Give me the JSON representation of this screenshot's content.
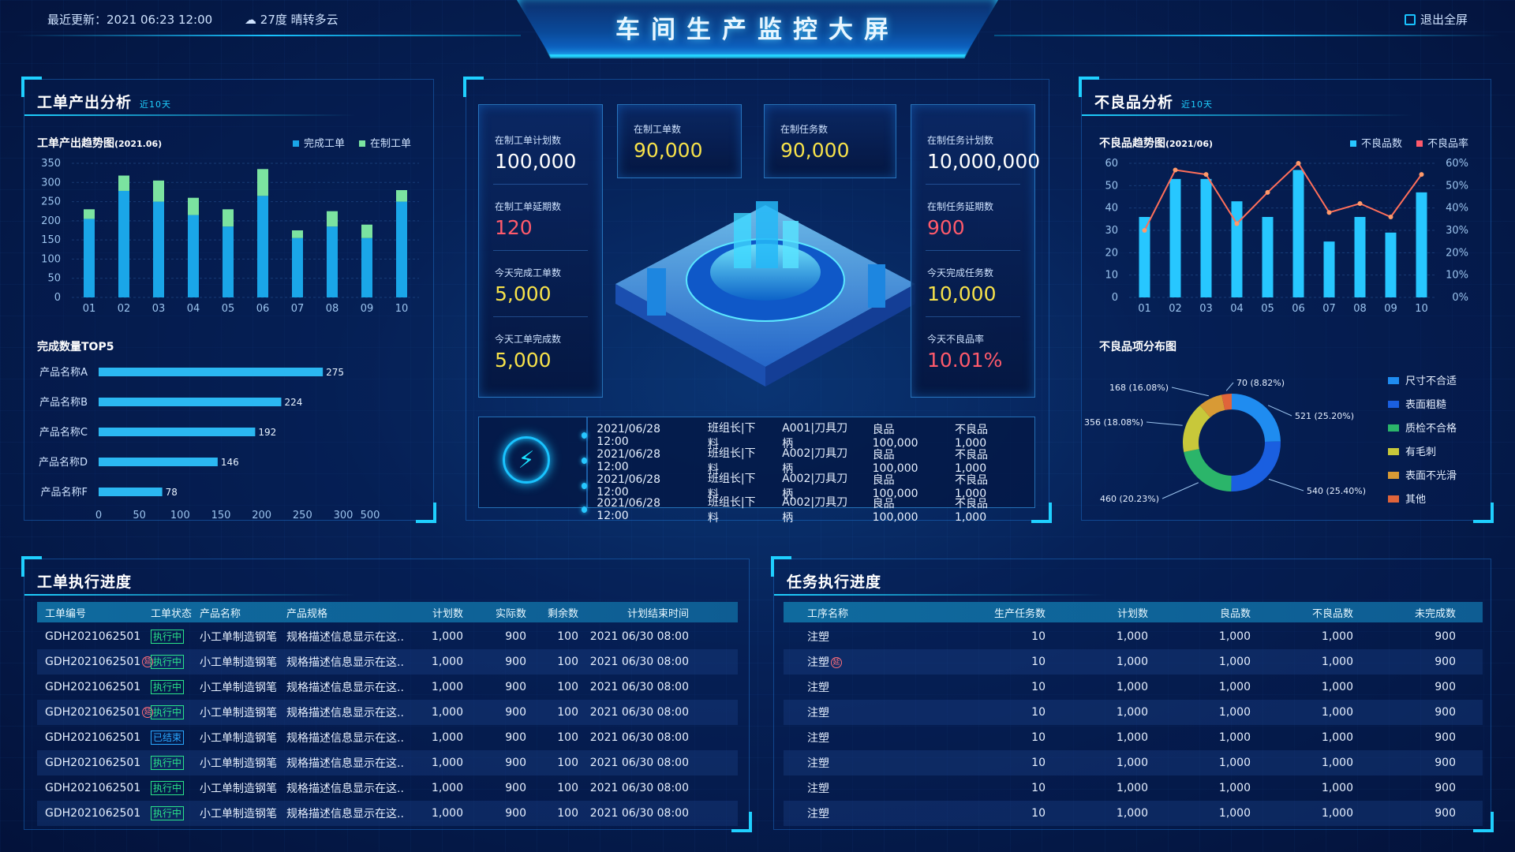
{
  "header": {
    "update_label": "最近更新：",
    "update_time": "2021 06:23 12:00",
    "weather": "27度 晴转多云",
    "title": "车间生产监控大屏",
    "exit_label": "退出全屏"
  },
  "left_top": {
    "title": "工单产出分析",
    "subtitle": "近10天",
    "trend_title": "工单产出趋势图",
    "trend_title_date": "(2021.06)",
    "legend_done": "完成工单",
    "legend_wip": "在制工单",
    "top5_title": "完成数量TOP5"
  },
  "colors": {
    "accent": "#1fd0ff",
    "bar_blue": "#1aa6e8",
    "bar_green": "#7be3a0",
    "red": "#ff5a6b",
    "yellow": "#f7e24a"
  },
  "chart_data": [
    {
      "type": "bar",
      "title": "工单产出趋势图(2021.06)",
      "categories": [
        "01",
        "02",
        "03",
        "04",
        "05",
        "06",
        "07",
        "08",
        "09",
        "10"
      ],
      "series": [
        {
          "name": "完成工单",
          "values": [
            205,
            278,
            250,
            215,
            185,
            265,
            155,
            185,
            155,
            250
          ]
        },
        {
          "name": "在制工单",
          "values": [
            25,
            40,
            55,
            45,
            45,
            70,
            20,
            40,
            35,
            30
          ]
        }
      ],
      "stacked": true,
      "ylim": [
        0,
        350
      ],
      "yticks": [
        0,
        50,
        100,
        150,
        200,
        250,
        300,
        350
      ]
    },
    {
      "type": "bar",
      "orientation": "horizontal",
      "title": "完成数量TOP5",
      "categories": [
        "产品名称A",
        "产品名称B",
        "产品名称C",
        "产品名称D",
        "产品名称F"
      ],
      "values": [
        275,
        224,
        192,
        146,
        78
      ],
      "xticks": [
        "0",
        "50",
        "100",
        "150",
        "200",
        "250",
        "300",
        "500"
      ]
    },
    {
      "type": "bar",
      "title": "不良品趋势图(2021/06)",
      "categories": [
        "01",
        "02",
        "03",
        "04",
        "05",
        "06",
        "07",
        "08",
        "09",
        "10"
      ],
      "series": [
        {
          "name": "不良品数",
          "values": [
            36,
            53,
            53,
            43,
            36,
            57,
            25,
            36,
            29,
            47
          ]
        },
        {
          "name": "不良品率",
          "values": [
            30,
            57,
            55,
            33,
            47,
            60,
            38,
            42,
            36,
            55
          ]
        }
      ],
      "ylim": [
        0,
        60
      ],
      "yticks": [
        0,
        10,
        20,
        30,
        40,
        50,
        60
      ],
      "y2ticks": [
        "0%",
        "10%",
        "20%",
        "30%",
        "40%",
        "50%",
        "60%"
      ]
    },
    {
      "type": "pie",
      "title": "不良品项分布图",
      "slices": [
        {
          "label": "尺寸不合适",
          "value": 521,
          "pct": "25.20%",
          "color": "#1f8cf0"
        },
        {
          "label": "表面粗糙",
          "value": 540,
          "pct": "25.40%",
          "color": "#1a5fe0"
        },
        {
          "label": "质检不合格",
          "value": 460,
          "pct": "20.23%",
          "color": "#2bb56a"
        },
        {
          "label": "有毛刺",
          "value": 356,
          "pct": "18.08%",
          "color": "#c8c83a"
        },
        {
          "label": "表面不光滑",
          "value": 168,
          "pct": "16.08%",
          "color": "#d89a35"
        },
        {
          "label": "其他",
          "value": 70,
          "pct": "8.82%",
          "color": "#e0643a"
        }
      ]
    }
  ],
  "right_top": {
    "title": "不良品分析",
    "subtitle": "近10天",
    "trend_title": "不良品趋势图",
    "trend_title_date": "(2021/06)",
    "legend_count": "不良品数",
    "legend_rate": "不良品率",
    "pie_title": "不良品项分布图",
    "pie_labels": [
      "521 (25.20%)",
      "540 (25.40%)",
      "460 (20.23%)",
      "356 (18.08%)",
      "168 (16.08%)",
      "70 (8.82%)"
    ]
  },
  "kpis": {
    "left": [
      {
        "label": "在制工单计划数",
        "value": "100,000"
      },
      {
        "label": "在制工单延期数",
        "value": "120"
      },
      {
        "label": "今天完成工单数",
        "value": "5,000"
      },
      {
        "label": "今天工单完成数",
        "value": "5,000"
      }
    ],
    "mid1": {
      "label": "在制工单数",
      "value": "90,000"
    },
    "mid2": {
      "label": "在制任务数",
      "value": "90,000"
    },
    "right": [
      {
        "label": "在制任务计划数",
        "value": "10,000,000"
      },
      {
        "label": "在制任务延期数",
        "value": "900"
      },
      {
        "label": "今天完成任务数",
        "value": "10,000"
      },
      {
        "label": "今天不良品率",
        "value": "10.01%"
      }
    ]
  },
  "log": [
    {
      "time": "2021/06/28 12:00",
      "op": "班组长|下料",
      "item": "A001|刀具刀柄",
      "good": "良品100,000",
      "bad": "不良品1,000"
    },
    {
      "time": "2021/06/28 12:00",
      "op": "班组长|下料",
      "item": "A002|刀具刀柄",
      "good": "良品100,000",
      "bad": "不良品1,000"
    },
    {
      "time": "2021/06/28 12:00",
      "op": "班组长|下料",
      "item": "A002|刀具刀柄",
      "good": "良品100,000",
      "bad": "不良品1,000"
    },
    {
      "time": "2021/06/28 12:00",
      "op": "班组长|下料",
      "item": "A002|刀具刀柄",
      "good": "良品100,000",
      "bad": "不良品1,000"
    }
  ],
  "work_table": {
    "title": "工单执行进度",
    "columns": [
      "工单编号",
      "工单状态",
      "产品名称",
      "产品规格",
      "计划数",
      "实际数",
      "剩余数",
      "计划结束时间"
    ],
    "rows": [
      {
        "id": "GDH2021062501",
        "flag": false,
        "status": "执行中",
        "name": "小工单制造钢笔",
        "spec": "规格描述信息显示在这..",
        "plan": "1,000",
        "actual": "900",
        "left": "100",
        "end": "2021 06/30 08:00"
      },
      {
        "id": "GDH2021062501",
        "flag": true,
        "status": "执行中",
        "name": "小工单制造钢笔",
        "spec": "规格描述信息显示在这..",
        "plan": "1,000",
        "actual": "900",
        "left": "100",
        "end": "2021 06/30 08:00"
      },
      {
        "id": "GDH2021062501",
        "flag": false,
        "status": "执行中",
        "name": "小工单制造钢笔",
        "spec": "规格描述信息显示在这..",
        "plan": "1,000",
        "actual": "900",
        "left": "100",
        "end": "2021 06/30 08:00"
      },
      {
        "id": "GDH2021062501",
        "flag": true,
        "status": "执行中",
        "name": "小工单制造钢笔",
        "spec": "规格描述信息显示在这..",
        "plan": "1,000",
        "actual": "900",
        "left": "100",
        "end": "2021 06/30 08:00"
      },
      {
        "id": "GDH2021062501",
        "flag": false,
        "status": "已结束",
        "name": "小工单制造钢笔",
        "spec": "规格描述信息显示在这..",
        "plan": "1,000",
        "actual": "900",
        "left": "100",
        "end": "2021 06/30 08:00"
      },
      {
        "id": "GDH2021062501",
        "flag": false,
        "status": "执行中",
        "name": "小工单制造钢笔",
        "spec": "规格描述信息显示在这..",
        "plan": "1,000",
        "actual": "900",
        "left": "100",
        "end": "2021 06/30 08:00"
      },
      {
        "id": "GDH2021062501",
        "flag": false,
        "status": "执行中",
        "name": "小工单制造钢笔",
        "spec": "规格描述信息显示在这..",
        "plan": "1,000",
        "actual": "900",
        "left": "100",
        "end": "2021 06/30 08:00"
      },
      {
        "id": "GDH2021062501",
        "flag": false,
        "status": "执行中",
        "name": "小工单制造钢笔",
        "spec": "规格描述信息显示在这..",
        "plan": "1,000",
        "actual": "900",
        "left": "100",
        "end": "2021 06/30 08:00"
      }
    ]
  },
  "task_table": {
    "title": "任务执行进度",
    "columns": [
      "工序名称",
      "生产任务数",
      "计划数",
      "良品数",
      "不良品数",
      "未完成数"
    ],
    "rows": [
      {
        "name": "注塑",
        "flag": false,
        "tasks": "10",
        "plan": "1,000",
        "good": "1,000",
        "bad": "1,000",
        "undone": "900"
      },
      {
        "name": "注塑",
        "flag": true,
        "tasks": "10",
        "plan": "1,000",
        "good": "1,000",
        "bad": "1,000",
        "undone": "900"
      },
      {
        "name": "注塑",
        "flag": false,
        "tasks": "10",
        "plan": "1,000",
        "good": "1,000",
        "bad": "1,000",
        "undone": "900"
      },
      {
        "name": "注塑",
        "flag": false,
        "tasks": "10",
        "plan": "1,000",
        "good": "1,000",
        "bad": "1,000",
        "undone": "900"
      },
      {
        "name": "注塑",
        "flag": false,
        "tasks": "10",
        "plan": "1,000",
        "good": "1,000",
        "bad": "1,000",
        "undone": "900"
      },
      {
        "name": "注塑",
        "flag": false,
        "tasks": "10",
        "plan": "1,000",
        "good": "1,000",
        "bad": "1,000",
        "undone": "900"
      },
      {
        "name": "注塑",
        "flag": false,
        "tasks": "10",
        "plan": "1,000",
        "good": "1,000",
        "bad": "1,000",
        "undone": "900"
      },
      {
        "name": "注塑",
        "flag": false,
        "tasks": "10",
        "plan": "1,000",
        "good": "1,000",
        "bad": "1,000",
        "undone": "900"
      }
    ]
  }
}
